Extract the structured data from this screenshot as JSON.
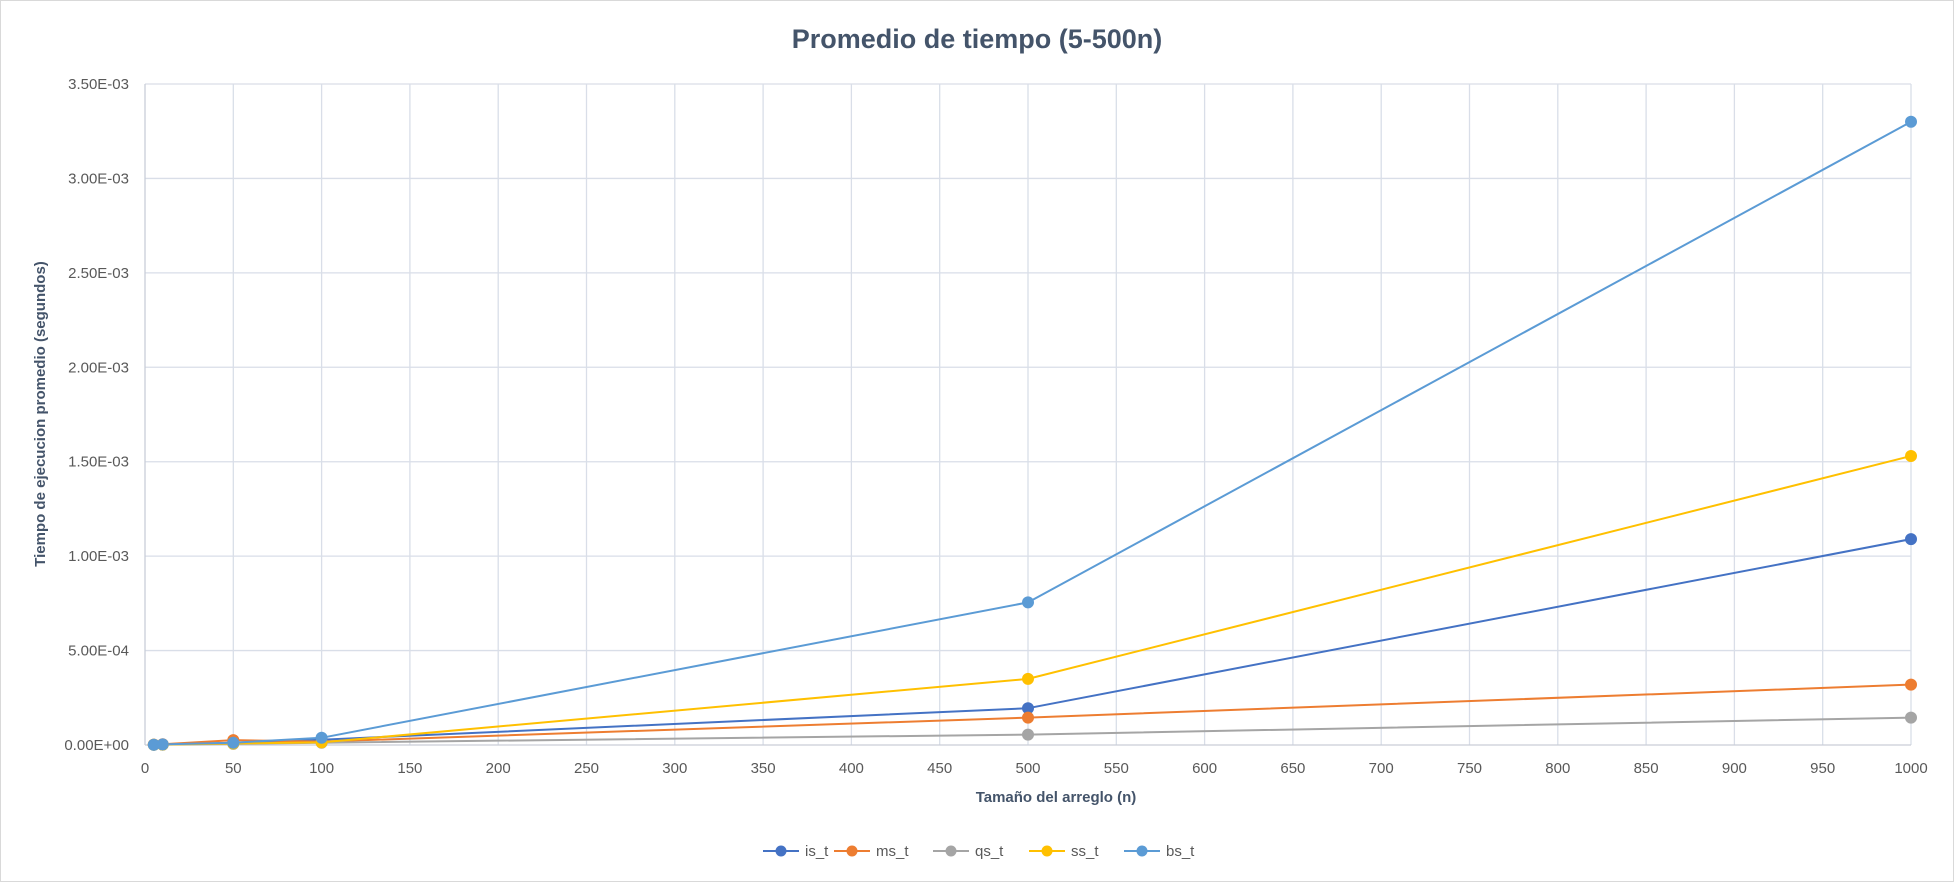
{
  "chart_data": {
    "type": "scatter",
    "title": "Promedio de tiempo (5-500n)",
    "xlabel": "Tamaño del arreglo (n)",
    "ylabel": "Tiempo de ejecucion promedio (segundos)",
    "xlim": [
      0,
      1000
    ],
    "ylim": [
      0,
      0.0035
    ],
    "x_ticks": [
      "0",
      "50",
      "100",
      "150",
      "200",
      "250",
      "300",
      "350",
      "400",
      "450",
      "500",
      "550",
      "600",
      "650",
      "700",
      "750",
      "800",
      "850",
      "900",
      "950",
      "1000"
    ],
    "y_ticks": [
      "0.00E+00",
      "5.00E-04",
      "1.00E-03",
      "1.50E-03",
      "2.00E-03",
      "2.50E-03",
      "3.00E-03",
      "3.50E-03"
    ],
    "grid": true,
    "legend_position": "bottom",
    "x": [
      5,
      10,
      50,
      100,
      500,
      1000
    ],
    "series": [
      {
        "name": "is_t",
        "color": "#4472c4",
        "values": [
          1e-06,
          2e-06,
          1.2e-05,
          2.8e-05,
          0.000195,
          0.00109
        ]
      },
      {
        "name": "ms_t",
        "color": "#ed7d31",
        "values": [
          2e-06,
          4e-06,
          2.6e-05,
          1.8e-05,
          0.000145,
          0.00032
        ]
      },
      {
        "name": "qs_t",
        "color": "#a5a5a5",
        "values": [
          1e-06,
          2e-06,
          6e-06,
          1.2e-05,
          5.5e-05,
          0.000145
        ]
      },
      {
        "name": "ss_t",
        "color": "#ffc000",
        "values": [
          1e-06,
          2e-06,
          8e-06,
          1.4e-05,
          0.00035,
          0.00153
        ]
      },
      {
        "name": "bs_t",
        "color": "#5b9bd5",
        "values": [
          1e-06,
          3e-06,
          1.2e-05,
          3.8e-05,
          0.000755,
          0.0033
        ]
      }
    ]
  }
}
